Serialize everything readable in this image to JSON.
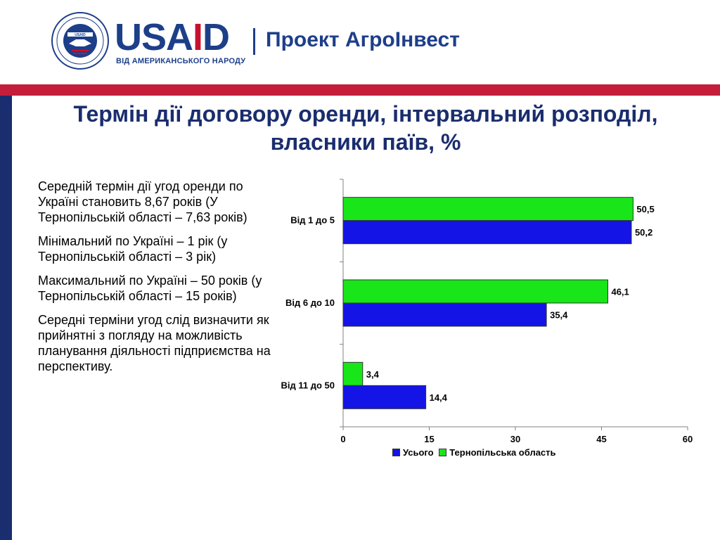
{
  "header": {
    "brand_pre": "USA",
    "brand_post": "D",
    "brand_sub": "ВІД АМЕРИКАНСЬКОГО НАРОДУ",
    "project": "Проект АгроІнвест"
  },
  "title_line1": "Термін дії договору оренди, інтервальний розподіл,",
  "title_line2": "власники паїв, %",
  "bullets": [
    "Середній термін дії угод оренди по Україні становить 8,67 років (У Тернопільській області – 7,63 років)",
    "Мінімальний по Україні – 1 рік (у Тернопільській області – 3 рік)",
    "Максимальний по Україні – 50 років (у Тернопільській області – 15 років)",
    "Середні терміни угод слід визначити як прийнятні з погляду на можливість планування діяльності підприємства на перспективу."
  ],
  "chart_data": {
    "type": "bar",
    "orientation": "horizontal",
    "categories": [
      "Від 1 до 5",
      "Від 6 до 10",
      "Від 11 до 50"
    ],
    "series": [
      {
        "name": "Усього",
        "values": [
          50.2,
          35.4,
          14.4
        ],
        "labels": [
          "50,2",
          "35,4",
          "14,4"
        ],
        "color": "#1414e6"
      },
      {
        "name": "Тернопільська область",
        "values": [
          50.5,
          46.1,
          3.4
        ],
        "labels": [
          "50,5",
          "46,1",
          "3,4"
        ],
        "color": "#19e619"
      }
    ],
    "xlim": [
      0,
      60
    ],
    "xticks": [
      0,
      15,
      30,
      45,
      60
    ],
    "legend_position": "bottom",
    "grid": false
  }
}
